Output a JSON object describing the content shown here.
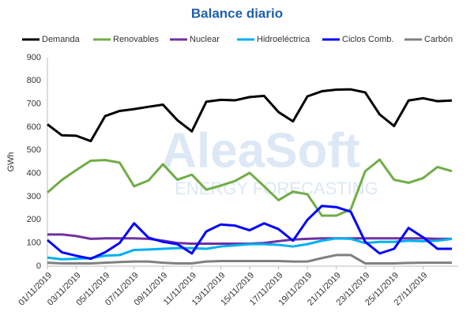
{
  "chart_data": {
    "type": "line",
    "title": "Balance diario",
    "y_label": "GWh",
    "categories": [
      "01/11/2019",
      null,
      "03/11/2019",
      null,
      "05/11/2019",
      null,
      "07/11/2019",
      null,
      "09/11/2019",
      null,
      "11/11/2019",
      null,
      "13/11/2019",
      null,
      "15/11/2019",
      null,
      "17/11/2019",
      null,
      "19/11/2019",
      null,
      "21/11/2019",
      null,
      "23/11/2019",
      null,
      "25/11/2019",
      null,
      "27/11/2019",
      null,
      null
    ],
    "series": [
      {
        "name": "Demanda",
        "color": "#000000",
        "values": [
          612,
          565,
          563,
          540,
          648,
          670,
          678,
          688,
          697,
          630,
          582,
          710,
          718,
          716,
          730,
          735,
          665,
          625,
          733,
          755,
          762,
          763,
          750,
          655,
          605,
          715,
          725,
          712,
          715
        ]
      },
      {
        "name": "Renovables",
        "color": "#70ad47",
        "values": [
          318,
          372,
          415,
          455,
          458,
          447,
          345,
          370,
          440,
          373,
          395,
          330,
          348,
          368,
          403,
          345,
          285,
          322,
          310,
          218,
          218,
          245,
          410,
          460,
          373,
          360,
          380,
          428,
          410
        ]
      },
      {
        "name": "Nuclear",
        "color": "#7030a0",
        "values": [
          137,
          137,
          130,
          118,
          120,
          120,
          120,
          118,
          110,
          100,
          97,
          97,
          97,
          97,
          97,
          100,
          108,
          115,
          118,
          120,
          120,
          120,
          120,
          120,
          120,
          120,
          120,
          118,
          118
        ]
      },
      {
        "name": "Hidroeléctrica",
        "color": "#00b0f0",
        "values": [
          37,
          30,
          32,
          35,
          45,
          48,
          70,
          72,
          75,
          78,
          78,
          75,
          85,
          90,
          95,
          95,
          92,
          85,
          95,
          110,
          120,
          118,
          100,
          105,
          105,
          110,
          108,
          110,
          118
        ]
      },
      {
        "name": "Ciclos Comb.",
        "color": "#0000ff",
        "values": [
          113,
          60,
          45,
          32,
          60,
          100,
          185,
          123,
          105,
          95,
          55,
          150,
          180,
          175,
          155,
          185,
          160,
          110,
          200,
          260,
          255,
          235,
          105,
          55,
          75,
          165,
          125,
          75,
          75
        ]
      },
      {
        "name": "Carbón",
        "color": "#808080",
        "values": [
          15,
          12,
          12,
          12,
          15,
          18,
          20,
          20,
          15,
          12,
          12,
          20,
          22,
          22,
          22,
          22,
          22,
          20,
          20,
          35,
          48,
          48,
          12,
          12,
          12,
          14,
          15,
          15,
          15
        ]
      }
    ],
    "ylim": [
      0,
      900
    ],
    "yticks": [
      0,
      100,
      200,
      300,
      400,
      500,
      600,
      700,
      800,
      900
    ],
    "grid": false,
    "legend": "top"
  },
  "watermark": {
    "text": "AleaSoft",
    "subtitle": "ENERGY FORECASTING"
  }
}
